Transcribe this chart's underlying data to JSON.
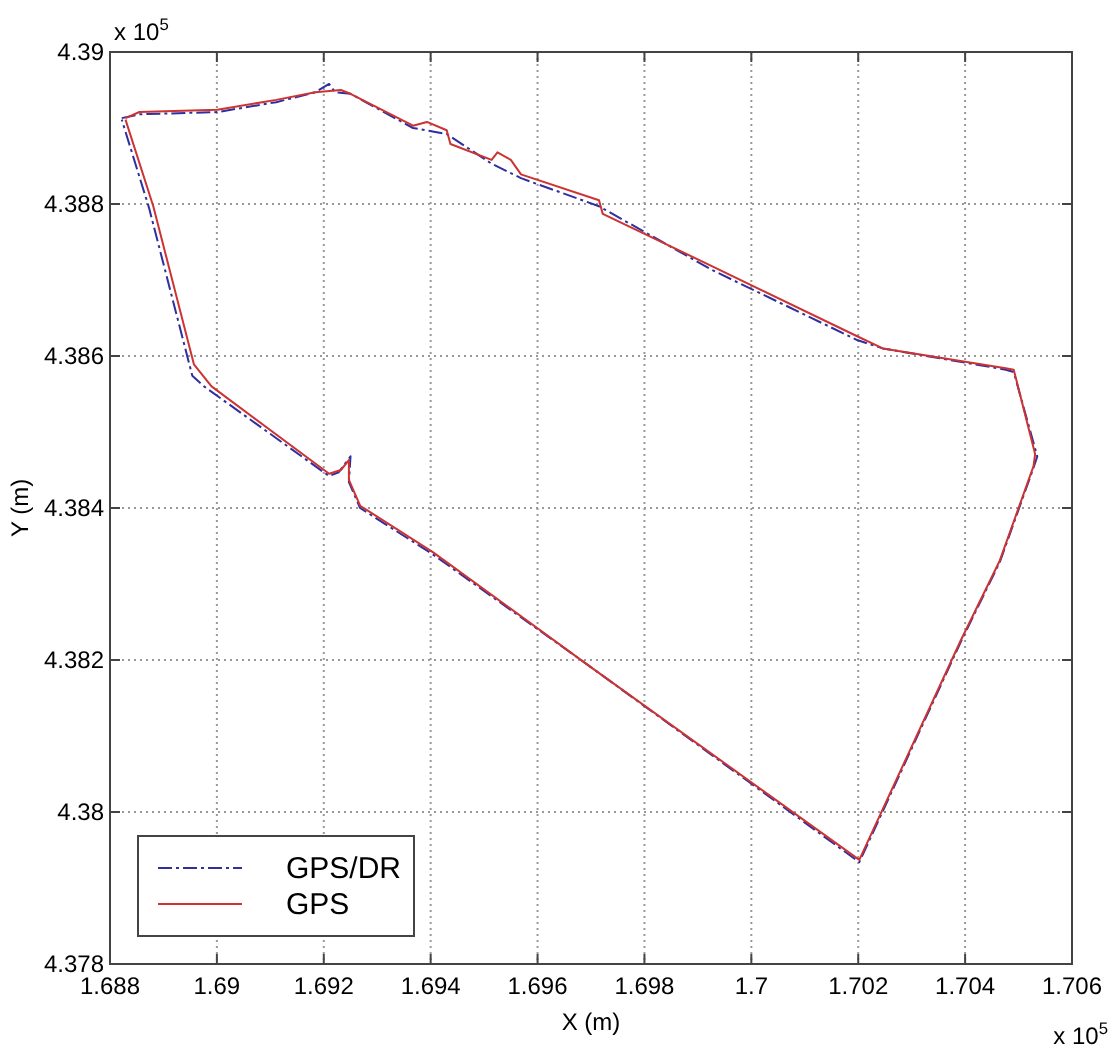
{
  "chart_data": {
    "type": "line",
    "xlabel": "X (m)",
    "ylabel": "Y (m)",
    "annotations": [
      "x 10$^{5}$",
      "x 10$^{5}$"
    ],
    "xlim": [
      1.688,
      1.706
    ],
    "xticks": [
      1.688,
      1.69,
      1.692,
      1.694,
      1.696,
      1.698,
      1.7,
      1.702,
      1.704,
      1.706
    ],
    "ylim": [
      4.378,
      4.39
    ],
    "yticks": [
      4.378,
      4.38,
      4.382,
      4.384,
      4.386,
      4.388,
      4.39
    ],
    "grid": true,
    "legend": "bottom left",
    "series": [
      {
        "name": "GPS/DR",
        "color": "#2f2f9f",
        "line_style": "dashed",
        "x": [
          1.68822,
          1.68855,
          1.69001,
          1.69111,
          1.69184,
          1.6921,
          1.69221,
          1.6925,
          1.69367,
          1.6943,
          1.69514,
          1.69569,
          1.69715,
          1.69927,
          1.70198,
          1.70246,
          1.70476,
          1.70491,
          1.70535,
          1.70528,
          1.70465,
          1.70392,
          1.70202,
          1.69697,
          1.69404,
          1.69268,
          1.69247,
          1.6925,
          1.69228,
          1.6921,
          1.68976,
          1.68954,
          1.68873,
          1.68822
        ],
        "values": [
          4.38913,
          4.38918,
          4.38921,
          4.38934,
          4.38947,
          4.38958,
          4.38947,
          4.38945,
          4.389,
          4.38892,
          4.38853,
          4.38834,
          4.38797,
          4.38713,
          4.38621,
          4.3861,
          4.38582,
          4.38579,
          4.38468,
          4.38453,
          4.38329,
          4.38224,
          4.37934,
          4.38192,
          4.38339,
          4.384,
          4.38434,
          4.38468,
          4.38447,
          4.38442,
          4.3856,
          4.38574,
          4.38795,
          4.38911
        ]
      },
      {
        "name": "GPS",
        "color": "#cc3333",
        "line_style": "solid",
        "x": [
          1.68829,
          1.68855,
          1.69001,
          1.69111,
          1.69184,
          1.69232,
          1.6925,
          1.69367,
          1.69393,
          1.6943,
          1.69437,
          1.69514,
          1.69525,
          1.6955,
          1.69569,
          1.69715,
          1.69722,
          1.69927,
          1.70198,
          1.70246,
          1.70476,
          1.70491,
          1.70531,
          1.70528,
          1.70465,
          1.70392,
          1.70202,
          1.69697,
          1.69404,
          1.69268,
          1.69247,
          1.69247,
          1.69232,
          1.6921,
          1.6899,
          1.68957,
          1.68881,
          1.68829
        ],
        "values": [
          4.38913,
          4.38921,
          4.38924,
          4.38937,
          4.38947,
          4.3895,
          4.38945,
          4.38903,
          4.38908,
          4.38897,
          4.38879,
          4.38858,
          4.38868,
          4.38858,
          4.38839,
          4.38805,
          4.38787,
          4.38718,
          4.38626,
          4.3861,
          4.38584,
          4.38582,
          4.38471,
          4.38455,
          4.38331,
          4.38226,
          4.37937,
          4.38192,
          4.38342,
          4.38403,
          4.38437,
          4.38463,
          4.3845,
          4.38445,
          4.3856,
          4.38589,
          4.38797,
          4.38911
        ]
      }
    ]
  }
}
